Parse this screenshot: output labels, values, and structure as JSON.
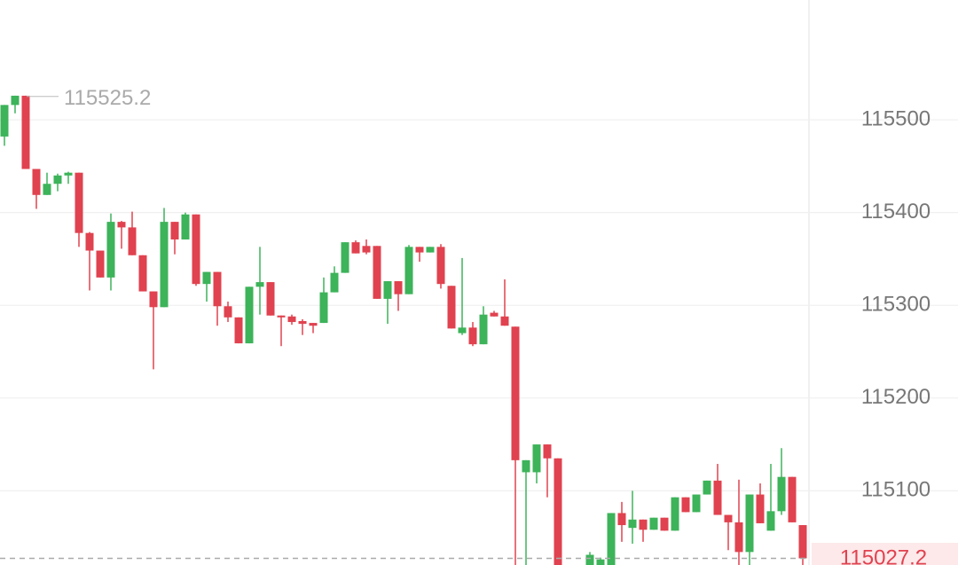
{
  "chart_data": {
    "type": "candlestick",
    "open": [
      115482,
      115516,
      115526,
      115447,
      115419,
      115431,
      115440,
      115443,
      115378,
      115359,
      115330,
      115390,
      115384,
      115354,
      115315,
      115298,
      115390,
      115371,
      115398,
      115323,
      115336,
      115299,
      115287,
      115259,
      115320,
      115325,
      115289,
      115288,
      115283,
      115281,
      115281,
      115314,
      115335,
      115368,
      115364,
      115364,
      115307,
      115326,
      115312,
      115363,
      115357,
      115363,
      115321,
      115270,
      115276,
      115258,
      115292,
      115288,
      115277,
      115120,
      115120,
      115150,
      115135,
      null,
      null,
      115020,
      115020,
      115020,
      115076,
      115060,
      115069,
      115058,
      115071,
      115057,
      115093,
      115077,
      115096,
      115111,
      115074,
      115066,
      115034,
      115096,
      115057,
      115078,
      115115,
      115063
    ],
    "high": [
      115516,
      115526,
      115526,
      115447,
      115443,
      115442,
      115444,
      115443,
      115379,
      115359,
      115399,
      115391,
      115401,
      115354,
      115315,
      115405,
      115390,
      115400,
      115398,
      115336,
      115336,
      115304,
      115287,
      115320,
      115363,
      115325,
      115289,
      115290,
      115285,
      115281,
      115330,
      115342,
      115368,
      115370,
      115371,
      115364,
      115326,
      115326,
      115365,
      115363,
      115363,
      115366,
      115321,
      115351,
      115282,
      115299,
      115294,
      115328,
      115277,
      115133,
      115150,
      115150,
      115135,
      null,
      null,
      115034,
      115028,
      115076,
      115088,
      115100,
      115069,
      115071,
      115071,
      115093,
      115093,
      115096,
      115111,
      115129,
      115074,
      115112,
      115096,
      115108,
      115129,
      115146,
      115115,
      115063
    ],
    "low": [
      115472,
      115507,
      115447,
      115404,
      115419,
      115423,
      115431,
      115363,
      115316,
      115330,
      115316,
      115361,
      115354,
      115315,
      115231,
      115298,
      115355,
      115371,
      115321,
      115304,
      115278,
      115282,
      115259,
      115259,
      115290,
      115289,
      115256,
      115279,
      115268,
      115270,
      115281,
      115314,
      115335,
      115356,
      115355,
      115307,
      115280,
      115294,
      115312,
      115347,
      115357,
      115318,
      115275,
      115268,
      115256,
      115258,
      115288,
      115278,
      115020,
      115020,
      115108,
      115093,
      115020,
      null,
      null,
      115020,
      115020,
      115020,
      115045,
      115043,
      115045,
      115058,
      115057,
      115057,
      115077,
      115077,
      115096,
      115074,
      115036,
      115020,
      115020,
      115065,
      115057,
      115074,
      115066,
      115020
    ],
    "close": [
      115516,
      115526,
      115447,
      115419,
      115431,
      115440,
      115443,
      115378,
      115359,
      115330,
      115390,
      115384,
      115354,
      115315,
      115298,
      115390,
      115371,
      115398,
      115323,
      115336,
      115299,
      115287,
      115259,
      115320,
      115325,
      115289,
      115287,
      115282,
      115280,
      115278,
      115314,
      115335,
      115368,
      115356,
      115357,
      115307,
      115326,
      115312,
      115363,
      115357,
      115363,
      115323,
      115275,
      115276,
      115258,
      115290,
      115288,
      115278,
      115133,
      115133,
      115150,
      115135,
      115019,
      null,
      null,
      115031,
      115026,
      115076,
      115063,
      115069,
      115058,
      115071,
      115057,
      115093,
      115077,
      115096,
      115111,
      115074,
      115066,
      115034,
      115096,
      115065,
      115078,
      115115,
      115066,
      115027.2
    ],
    "up_color": "#3db35a",
    "down_color": "#e0424f",
    "ylim": [
      115020,
      115629.2
    ],
    "yticks": [
      115100,
      115200,
      115300,
      115400,
      115500
    ],
    "grid": true,
    "max_price": 115525.2,
    "last_price": 115027.2
  }
}
